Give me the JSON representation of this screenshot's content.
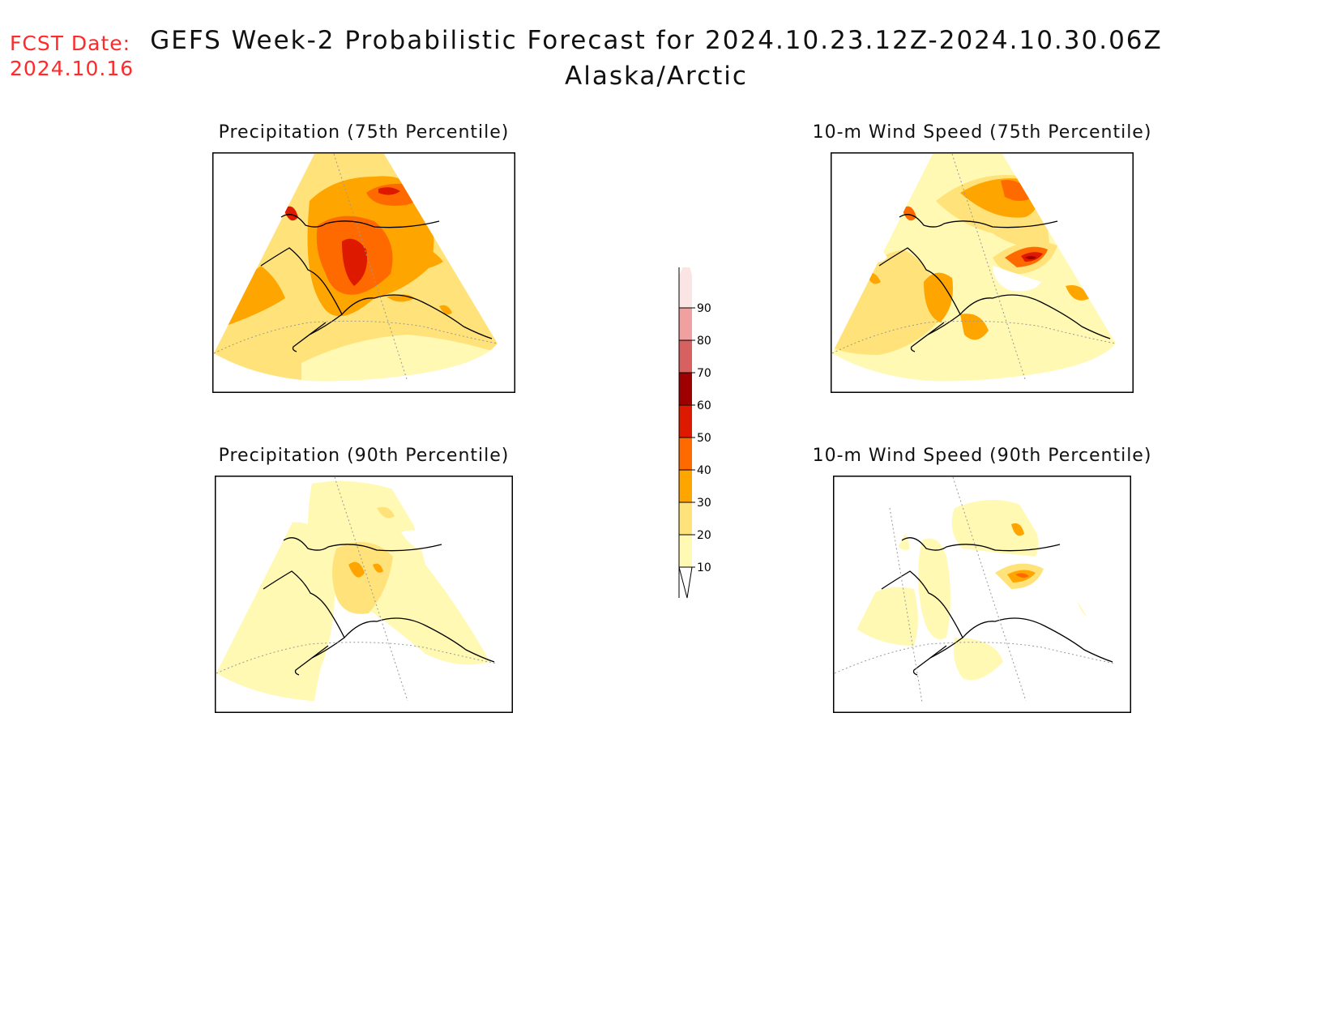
{
  "fcst_date": {
    "label": "FCST Date:",
    "value": "2024.10.16"
  },
  "title": "GEFS Week-2 Probabilistic Forecast for 2024.10.23.12Z-2024.10.30.06Z",
  "subtitle": "Alaska/Arctic",
  "panels": [
    {
      "id": "precip75",
      "title": "Precipitation (75th Percentile)"
    },
    {
      "id": "wind75",
      "title": "10-m Wind Speed (75th Percentile)"
    },
    {
      "id": "precip90",
      "title": "Precipitation (90th Percentile)"
    },
    {
      "id": "wind90",
      "title": "10-m Wind Speed (90th Percentile)"
    }
  ],
  "colorbar": {
    "levels": [
      "10",
      "20",
      "30",
      "40",
      "50",
      "60",
      "70",
      "80",
      "90"
    ],
    "colors": [
      "#fff9b3",
      "#ffe27a",
      "#ffa500",
      "#ff6a00",
      "#dd1a00",
      "#9e0000",
      "#d76060",
      "#f0a0a0",
      "#fbe4e4"
    ]
  }
}
